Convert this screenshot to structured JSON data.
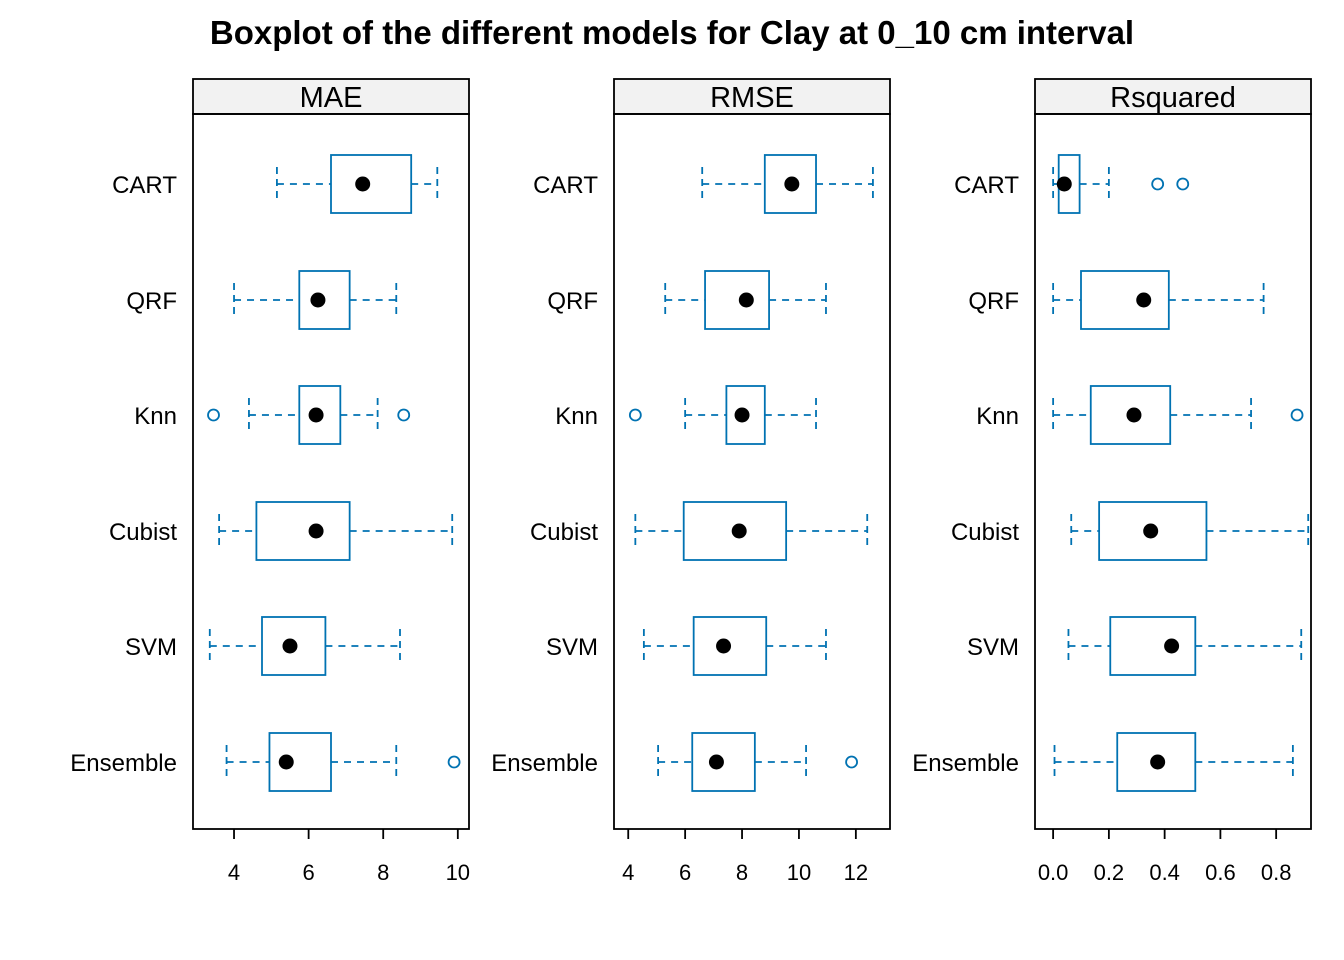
{
  "chart_data": {
    "type": "boxplot",
    "orientation": "horizontal",
    "title": "Boxplot of the different models for Clay at 0_10 cm interval",
    "categories": [
      "CART",
      "QRF",
      "Knn",
      "Cubist",
      "SVM",
      "Ensemble"
    ],
    "colors": {
      "box": "#0072B2",
      "median": "#000000",
      "strip_bg": "#F2F2F2",
      "frame": "#000000"
    },
    "panels": [
      {
        "name": "MAE",
        "xlim": [
          2.9,
          10.3
        ],
        "ticks": [
          4,
          6,
          8,
          10
        ],
        "tick_labels": [
          "4",
          "6",
          "8",
          "10"
        ],
        "stats": [
          {
            "model": "CART",
            "whisker_low": 5.15,
            "q1": 6.6,
            "median": 7.45,
            "q3": 8.75,
            "whisker_high": 9.45,
            "outliers": []
          },
          {
            "model": "QRF",
            "whisker_low": 4.0,
            "q1": 5.75,
            "median": 6.25,
            "q3": 7.1,
            "whisker_high": 8.35,
            "outliers": []
          },
          {
            "model": "Knn",
            "whisker_low": 4.4,
            "q1": 5.75,
            "median": 6.2,
            "q3": 6.85,
            "whisker_high": 7.85,
            "outliers": [
              3.45,
              8.55
            ]
          },
          {
            "model": "Cubist",
            "whisker_low": 3.6,
            "q1": 4.6,
            "median": 6.2,
            "q3": 7.1,
            "whisker_high": 9.85,
            "outliers": []
          },
          {
            "model": "SVM",
            "whisker_low": 3.35,
            "q1": 4.75,
            "median": 5.5,
            "q3": 6.45,
            "whisker_high": 8.45,
            "outliers": []
          },
          {
            "model": "Ensemble",
            "whisker_low": 3.8,
            "q1": 4.95,
            "median": 5.4,
            "q3": 6.6,
            "whisker_high": 8.35,
            "outliers": [
              9.9
            ]
          }
        ]
      },
      {
        "name": "RMSE",
        "xlim": [
          3.5,
          13.2
        ],
        "ticks": [
          4,
          6,
          8,
          10,
          12
        ],
        "tick_labels": [
          "4",
          "6",
          "8",
          "10",
          "12"
        ],
        "stats": [
          {
            "model": "CART",
            "whisker_low": 6.6,
            "q1": 8.8,
            "median": 9.75,
            "q3": 10.6,
            "whisker_high": 12.6,
            "outliers": []
          },
          {
            "model": "QRF",
            "whisker_low": 5.3,
            "q1": 6.7,
            "median": 8.15,
            "q3": 8.95,
            "whisker_high": 10.95,
            "outliers": []
          },
          {
            "model": "Knn",
            "whisker_low": 6.0,
            "q1": 7.45,
            "median": 8.0,
            "q3": 8.8,
            "whisker_high": 10.6,
            "outliers": [
              4.25
            ]
          },
          {
            "model": "Cubist",
            "whisker_low": 4.25,
            "q1": 5.95,
            "median": 7.9,
            "q3": 9.55,
            "whisker_high": 12.4,
            "outliers": []
          },
          {
            "model": "SVM",
            "whisker_low": 4.55,
            "q1": 6.3,
            "median": 7.35,
            "q3": 8.85,
            "whisker_high": 10.95,
            "outliers": []
          },
          {
            "model": "Ensemble",
            "whisker_low": 5.05,
            "q1": 6.25,
            "median": 7.1,
            "q3": 8.45,
            "whisker_high": 10.25,
            "outliers": [
              11.85
            ]
          }
        ]
      },
      {
        "name": "Rsquared",
        "xlim": [
          -0.065,
          0.925
        ],
        "ticks": [
          0.0,
          0.2,
          0.4,
          0.6,
          0.8
        ],
        "tick_labels": [
          "0.0",
          "0.2",
          "0.4",
          "0.6",
          "0.8"
        ],
        "stats": [
          {
            "model": "CART",
            "whisker_low": 0.0,
            "q1": 0.02,
            "median": 0.04,
            "q3": 0.095,
            "whisker_high": 0.2,
            "outliers": [
              0.375,
              0.465
            ]
          },
          {
            "model": "QRF",
            "whisker_low": 0.0,
            "q1": 0.1,
            "median": 0.325,
            "q3": 0.415,
            "whisker_high": 0.755,
            "outliers": []
          },
          {
            "model": "Knn",
            "whisker_low": 0.0,
            "q1": 0.135,
            "median": 0.29,
            "q3": 0.42,
            "whisker_high": 0.71,
            "outliers": [
              0.875
            ]
          },
          {
            "model": "Cubist",
            "whisker_low": 0.065,
            "q1": 0.165,
            "median": 0.35,
            "q3": 0.55,
            "whisker_high": 0.915,
            "outliers": []
          },
          {
            "model": "SVM",
            "whisker_low": 0.055,
            "q1": 0.205,
            "median": 0.425,
            "q3": 0.51,
            "whisker_high": 0.89,
            "outliers": []
          },
          {
            "model": "Ensemble",
            "whisker_low": 0.005,
            "q1": 0.23,
            "median": 0.375,
            "q3": 0.51,
            "whisker_high": 0.86,
            "outliers": []
          }
        ]
      }
    ]
  }
}
